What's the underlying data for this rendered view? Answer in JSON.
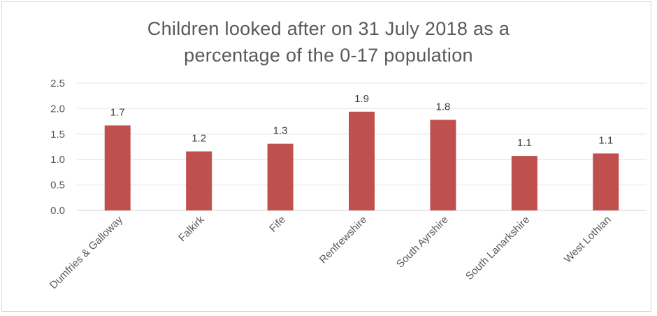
{
  "chart_data": {
    "type": "bar",
    "title_line1": "Children looked after on 31 July 2018 as a",
    "title_line2": "percentage of the 0-17 population",
    "categories": [
      "Dumfries & Galloway",
      "Falkirk",
      "Fife",
      "Renfrewshire",
      "South Ayrshire",
      "South Lanarkshire",
      "West Lothian"
    ],
    "values": [
      1.67,
      1.16,
      1.31,
      1.94,
      1.78,
      1.07,
      1.12
    ],
    "data_labels": [
      "1.7",
      "1.2",
      "1.3",
      "1.9",
      "1.8",
      "1.1",
      "1.1"
    ],
    "yticks": [
      "0.0",
      "0.5",
      "1.0",
      "1.5",
      "2.0",
      "2.5"
    ],
    "ylim": [
      0,
      2.5
    ],
    "grid": true,
    "legend": "none",
    "bar_color": "#c0504d"
  }
}
